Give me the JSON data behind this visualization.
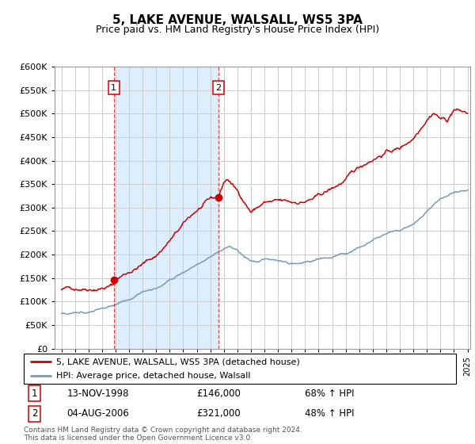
{
  "title": "5, LAKE AVENUE, WALSALL, WS5 3PA",
  "subtitle": "Price paid vs. HM Land Registry's House Price Index (HPI)",
  "legend_line1": "5, LAKE AVENUE, WALSALL, WS5 3PA (detached house)",
  "legend_line2": "HPI: Average price, detached house, Walsall",
  "sale1_date": "13-NOV-1998",
  "sale1_price": 146000,
  "sale1_label": "68% ↑ HPI",
  "sale2_date": "04-AUG-2006",
  "sale2_price": 321000,
  "sale2_label": "48% ↑ HPI",
  "sale1_x": 1998.87,
  "sale2_x": 2006.59,
  "red_color": "#cc0000",
  "blue_color": "#7799bb",
  "shade_color": "#ddeeff",
  "bg_color": "#ffffff",
  "grid_color": "#cccccc",
  "ylim": [
    0,
    600000
  ],
  "xlim": [
    1994.5,
    2025.2
  ],
  "footer": "Contains HM Land Registry data © Crown copyright and database right 2024.\nThis data is licensed under the Open Government Licence v3.0."
}
